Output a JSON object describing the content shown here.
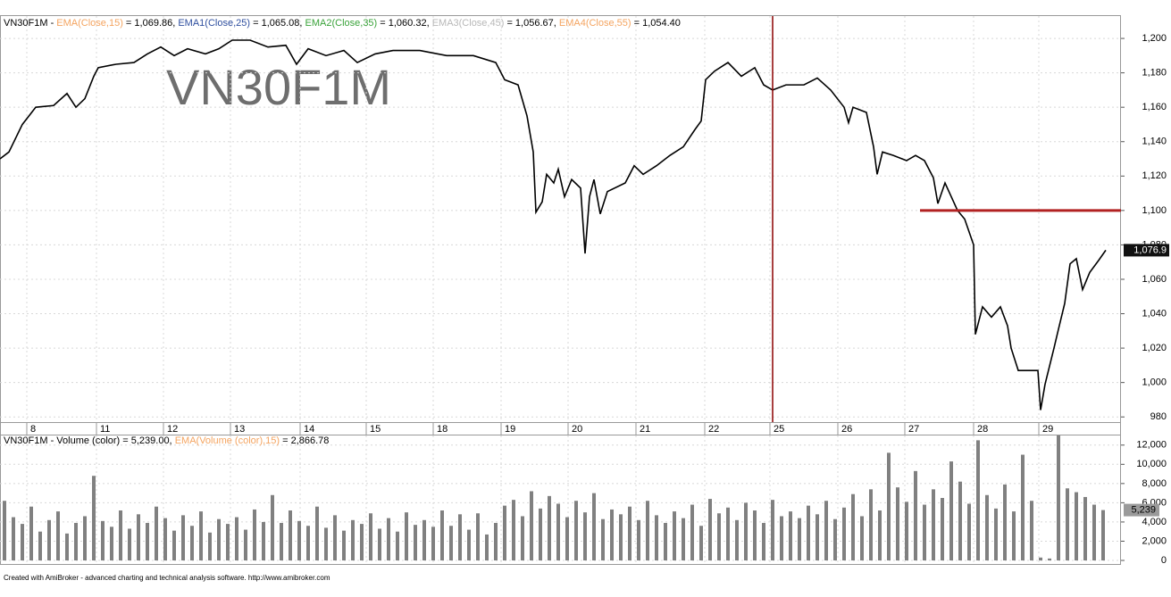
{
  "chart_data": [
    {
      "type": "line",
      "header": [
        {
          "text": "VN30F1M - ",
          "color": "#000000"
        },
        {
          "text": "EMA(Close,15)",
          "color": "#f4a460"
        },
        {
          "text": " = 1,069.86, ",
          "color": "#000000"
        },
        {
          "text": "EMA1(Close,25)",
          "color": "#2f4f9f"
        },
        {
          "text": " = 1,065.08, ",
          "color": "#000000"
        },
        {
          "text": "EMA2(Close,35)",
          "color": "#3aa33a"
        },
        {
          "text": " = 1,060.32, ",
          "color": "#000000"
        },
        {
          "text": "EMA3(Close,45)",
          "color": "#b8b8b8"
        },
        {
          "text": " = 1,056.67, ",
          "color": "#000000"
        },
        {
          "text": "EMA4(Close,55)",
          "color": "#f4a460"
        },
        {
          "text": " = 1,054.40",
          "color": "#000000"
        }
      ],
      "watermark": "VN30F1M",
      "x": [
        0,
        10,
        25,
        40,
        60,
        75,
        85,
        95,
        105,
        110,
        130,
        150,
        165,
        180,
        195,
        210,
        230,
        245,
        260,
        280,
        300,
        320,
        332,
        345,
        365,
        385,
        400,
        420,
        440,
        470,
        500,
        530,
        555,
        565,
        580,
        590,
        597,
        600,
        607,
        612,
        620,
        625,
        632,
        640,
        650,
        655,
        660,
        665,
        672,
        680,
        700,
        710,
        720,
        735,
        750,
        765,
        778,
        785,
        790,
        800,
        815,
        830,
        845,
        855,
        865,
        880,
        900,
        915,
        930,
        945,
        950,
        955,
        970,
        978,
        982,
        988,
        1000,
        1015,
        1025,
        1035,
        1045,
        1050,
        1058,
        1065,
        1072,
        1080,
        1090,
        1092,
        1100,
        1110,
        1120,
        1128,
        1132,
        1140,
        1162,
        1165,
        1170,
        1180,
        1185,
        1192,
        1198,
        1205,
        1212,
        1220,
        1230,
        1238
      ],
      "series": [
        {
          "name": "VN30F1M",
          "color": "#000000",
          "values": [
            1130,
            1134,
            1150,
            1160,
            1161,
            1168,
            1160,
            1165,
            1178,
            1183,
            1185,
            1186,
            1191,
            1195,
            1190,
            1194,
            1191,
            1194,
            1199,
            1199,
            1195,
            1196,
            1185,
            1194,
            1190,
            1193,
            1186,
            1191,
            1193,
            1193,
            1190,
            1190,
            1186,
            1176,
            1173,
            1155,
            1134,
            1099,
            1105,
            1121,
            1116,
            1124,
            1108,
            1118,
            1113,
            1075,
            1108,
            1118,
            1098,
            1111,
            1116,
            1126,
            1121,
            1126,
            1132,
            1137,
            1147,
            1152,
            1176,
            1181,
            1186,
            1178,
            1183,
            1173,
            1170,
            1173,
            1173,
            1177,
            1170,
            1160,
            1151,
            1160,
            1157,
            1137,
            1121,
            1134,
            1132,
            1129,
            1132,
            1129,
            1119,
            1104,
            1116,
            1108,
            1100,
            1095,
            1080,
            1028,
            1044,
            1038,
            1044,
            1033,
            1020,
            1007,
            1007,
            984,
            999,
            1020,
            1031,
            1046,
            1069,
            1072,
            1054,
            1064,
            1071,
            1076.9
          ],
          "last_value_label": "1,076.9"
        }
      ],
      "xlim": [
        0,
        1255
      ],
      "xticks": [
        {
          "value": 30,
          "label": "8"
        },
        {
          "value": 108,
          "label": "11"
        },
        {
          "value": 183,
          "label": "12"
        },
        {
          "value": 258,
          "label": "13"
        },
        {
          "value": 336,
          "label": "14"
        },
        {
          "value": 410,
          "label": "15"
        },
        {
          "value": 485,
          "label": "18"
        },
        {
          "value": 561,
          "label": "19"
        },
        {
          "value": 636,
          "label": "20"
        },
        {
          "value": 712,
          "label": "21"
        },
        {
          "value": 789,
          "label": "22"
        },
        {
          "value": 862,
          "label": "25"
        },
        {
          "value": 938,
          "label": "26"
        },
        {
          "value": 1013,
          "label": "27"
        },
        {
          "value": 1090,
          "label": "28"
        },
        {
          "value": 1163,
          "label": "29"
        }
      ],
      "ylim": [
        977,
        1213
      ],
      "yticks": [
        980,
        {
          "value": 1000,
          "label": "1,000"
        },
        {
          "value": 1020,
          "label": "1,020"
        },
        {
          "value": 1040,
          "label": "1,040"
        },
        {
          "value": 1060,
          "label": "1,060"
        },
        {
          "value": 1080,
          "label": "1,080"
        },
        {
          "value": 1100,
          "label": "1,100"
        },
        {
          "value": 1120,
          "label": "1,120"
        },
        {
          "value": 1140,
          "label": "1,140"
        },
        {
          "value": 1160,
          "label": "1,160"
        },
        {
          "value": 1180,
          "label": "1,180"
        },
        {
          "value": 1200,
          "label": "1,200"
        }
      ],
      "grid": true,
      "vline": {
        "value": 865,
        "color": "#8b0000"
      },
      "hline": {
        "value": 1100,
        "x_start": 1030,
        "color": "#b22222"
      }
    },
    {
      "type": "bar",
      "header": [
        {
          "text": "VN30F1M - Volume (color) = 5,239.00, ",
          "color": "#000000"
        },
        {
          "text": "EMA(Volume (color),15)",
          "color": "#f4a460"
        },
        {
          "text": " = 2,866.78",
          "color": "#000000"
        }
      ],
      "x": [
        5,
        15,
        25,
        35,
        45,
        55,
        65,
        75,
        85,
        95,
        105,
        115,
        125,
        135,
        145,
        155,
        165,
        175,
        185,
        195,
        205,
        215,
        225,
        235,
        245,
        255,
        265,
        275,
        285,
        295,
        305,
        315,
        325,
        335,
        345,
        355,
        365,
        375,
        385,
        395,
        405,
        415,
        425,
        435,
        445,
        455,
        465,
        475,
        485,
        495,
        505,
        515,
        525,
        535,
        545,
        555,
        565,
        575,
        585,
        595,
        605,
        615,
        625,
        635,
        645,
        655,
        665,
        675,
        685,
        695,
        705,
        715,
        725,
        735,
        745,
        755,
        765,
        775,
        785,
        795,
        805,
        815,
        825,
        835,
        845,
        855,
        865,
        875,
        885,
        895,
        905,
        915,
        925,
        935,
        945,
        955,
        965,
        975,
        985,
        995,
        1005,
        1015,
        1025,
        1035,
        1045,
        1055,
        1065,
        1075,
        1085,
        1095,
        1105,
        1115,
        1125,
        1135,
        1145,
        1155,
        1165,
        1175,
        1185,
        1195,
        1205,
        1215,
        1225,
        1235
      ],
      "values": [
        6200,
        4500,
        3800,
        5600,
        3000,
        4200,
        5100,
        2800,
        3900,
        4600,
        8800,
        4100,
        3500,
        5200,
        3300,
        4800,
        3900,
        5600,
        4400,
        3100,
        4700,
        3600,
        5100,
        2900,
        4300,
        3800,
        4500,
        3200,
        5300,
        4000,
        6800,
        3900,
        5200,
        4100,
        3600,
        5600,
        3400,
        4700,
        3100,
        4200,
        3800,
        4900,
        3300,
        4400,
        3000,
        5000,
        3700,
        4200,
        3500,
        5200,
        3600,
        4800,
        3200,
        4900,
        2700,
        3900,
        5700,
        6300,
        4600,
        7200,
        5400,
        6700,
        5900,
        4500,
        6200,
        5000,
        7000,
        4300,
        5300,
        4800,
        5600,
        4200,
        6200,
        4700,
        3900,
        5100,
        4400,
        5800,
        3600,
        6400,
        4900,
        5500,
        4200,
        6000,
        5200,
        3900,
        6300,
        4600,
        5100,
        4400,
        5700,
        4800,
        6200,
        4300,
        5500,
        6900,
        4600,
        7400,
        5200,
        11200,
        7600,
        6100,
        9300,
        5800,
        7400,
        6500,
        10300,
        8200,
        5900,
        12500,
        6800,
        5400,
        7900,
        5100,
        11000,
        6200,
        300,
        200,
        13000,
        7500,
        7100,
        6600,
        5800,
        5239
      ],
      "last_value_label": "5,239",
      "color": "#808080",
      "xlim": [
        0,
        1255
      ],
      "ylim": [
        -370,
        13000
      ],
      "yticks": [
        0,
        {
          "value": 2000,
          "label": "2,000"
        },
        {
          "value": 4000,
          "label": "4,000"
        },
        {
          "value": 6000,
          "label": "6,000"
        },
        {
          "value": 8000,
          "label": "8,000"
        },
        {
          "value": 10000,
          "label": "10,000"
        },
        {
          "value": 12000,
          "label": "12,000"
        }
      ],
      "grid": true
    }
  ],
  "footer": "Created with AmiBroker - advanced charting and technical analysis software. http://www.amibroker.com"
}
